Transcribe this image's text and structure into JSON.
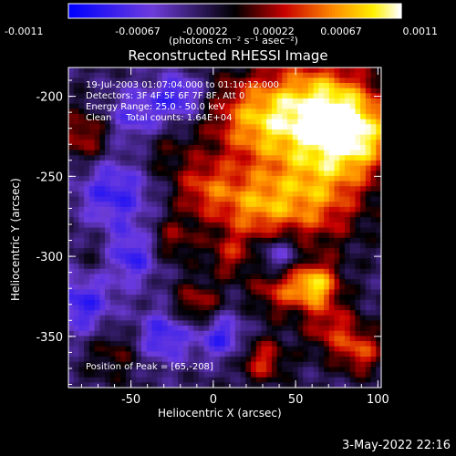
{
  "colorbar": {
    "ticks": [
      "-0.0011",
      "-0.00067",
      "-0.00022",
      "0.00022",
      "0.00067",
      "0.0011"
    ],
    "unit_label": "(photons cm⁻² s⁻¹ asec⁻²)"
  },
  "chart_data": {
    "type": "heatmap",
    "title": "Reconstructed RHESSI Image",
    "xlabel": "Heliocentric X (arcsec)",
    "ylabel": "Heliocentric Y (arcsec)",
    "xlim": [
      -88,
      102
    ],
    "ylim": [
      -382,
      -182
    ],
    "xticks": [
      -50,
      0,
      50,
      100
    ],
    "yticks": [
      -200,
      -250,
      -300,
      -350
    ],
    "colorbar_range": [
      -0.0011,
      0.0011
    ],
    "colormap": "blue-purple-black-red-yellow-white",
    "peak_position": [
      65,
      -208
    ],
    "annotations": {
      "line1": "19-Jul-2003 01:07:04.000 to 01:10:12.000",
      "line2": "Detectors: 3F 4F 5F 6F 7F 8F, Att 0",
      "line3": "Energy Range: 25.0 - 50.0 keV",
      "line4": "Clean     Total counts: 1.64E+04",
      "peak": "Position of Peak = [65,-208]"
    }
  },
  "footer": {
    "date": "3-May-2022 22:16"
  }
}
